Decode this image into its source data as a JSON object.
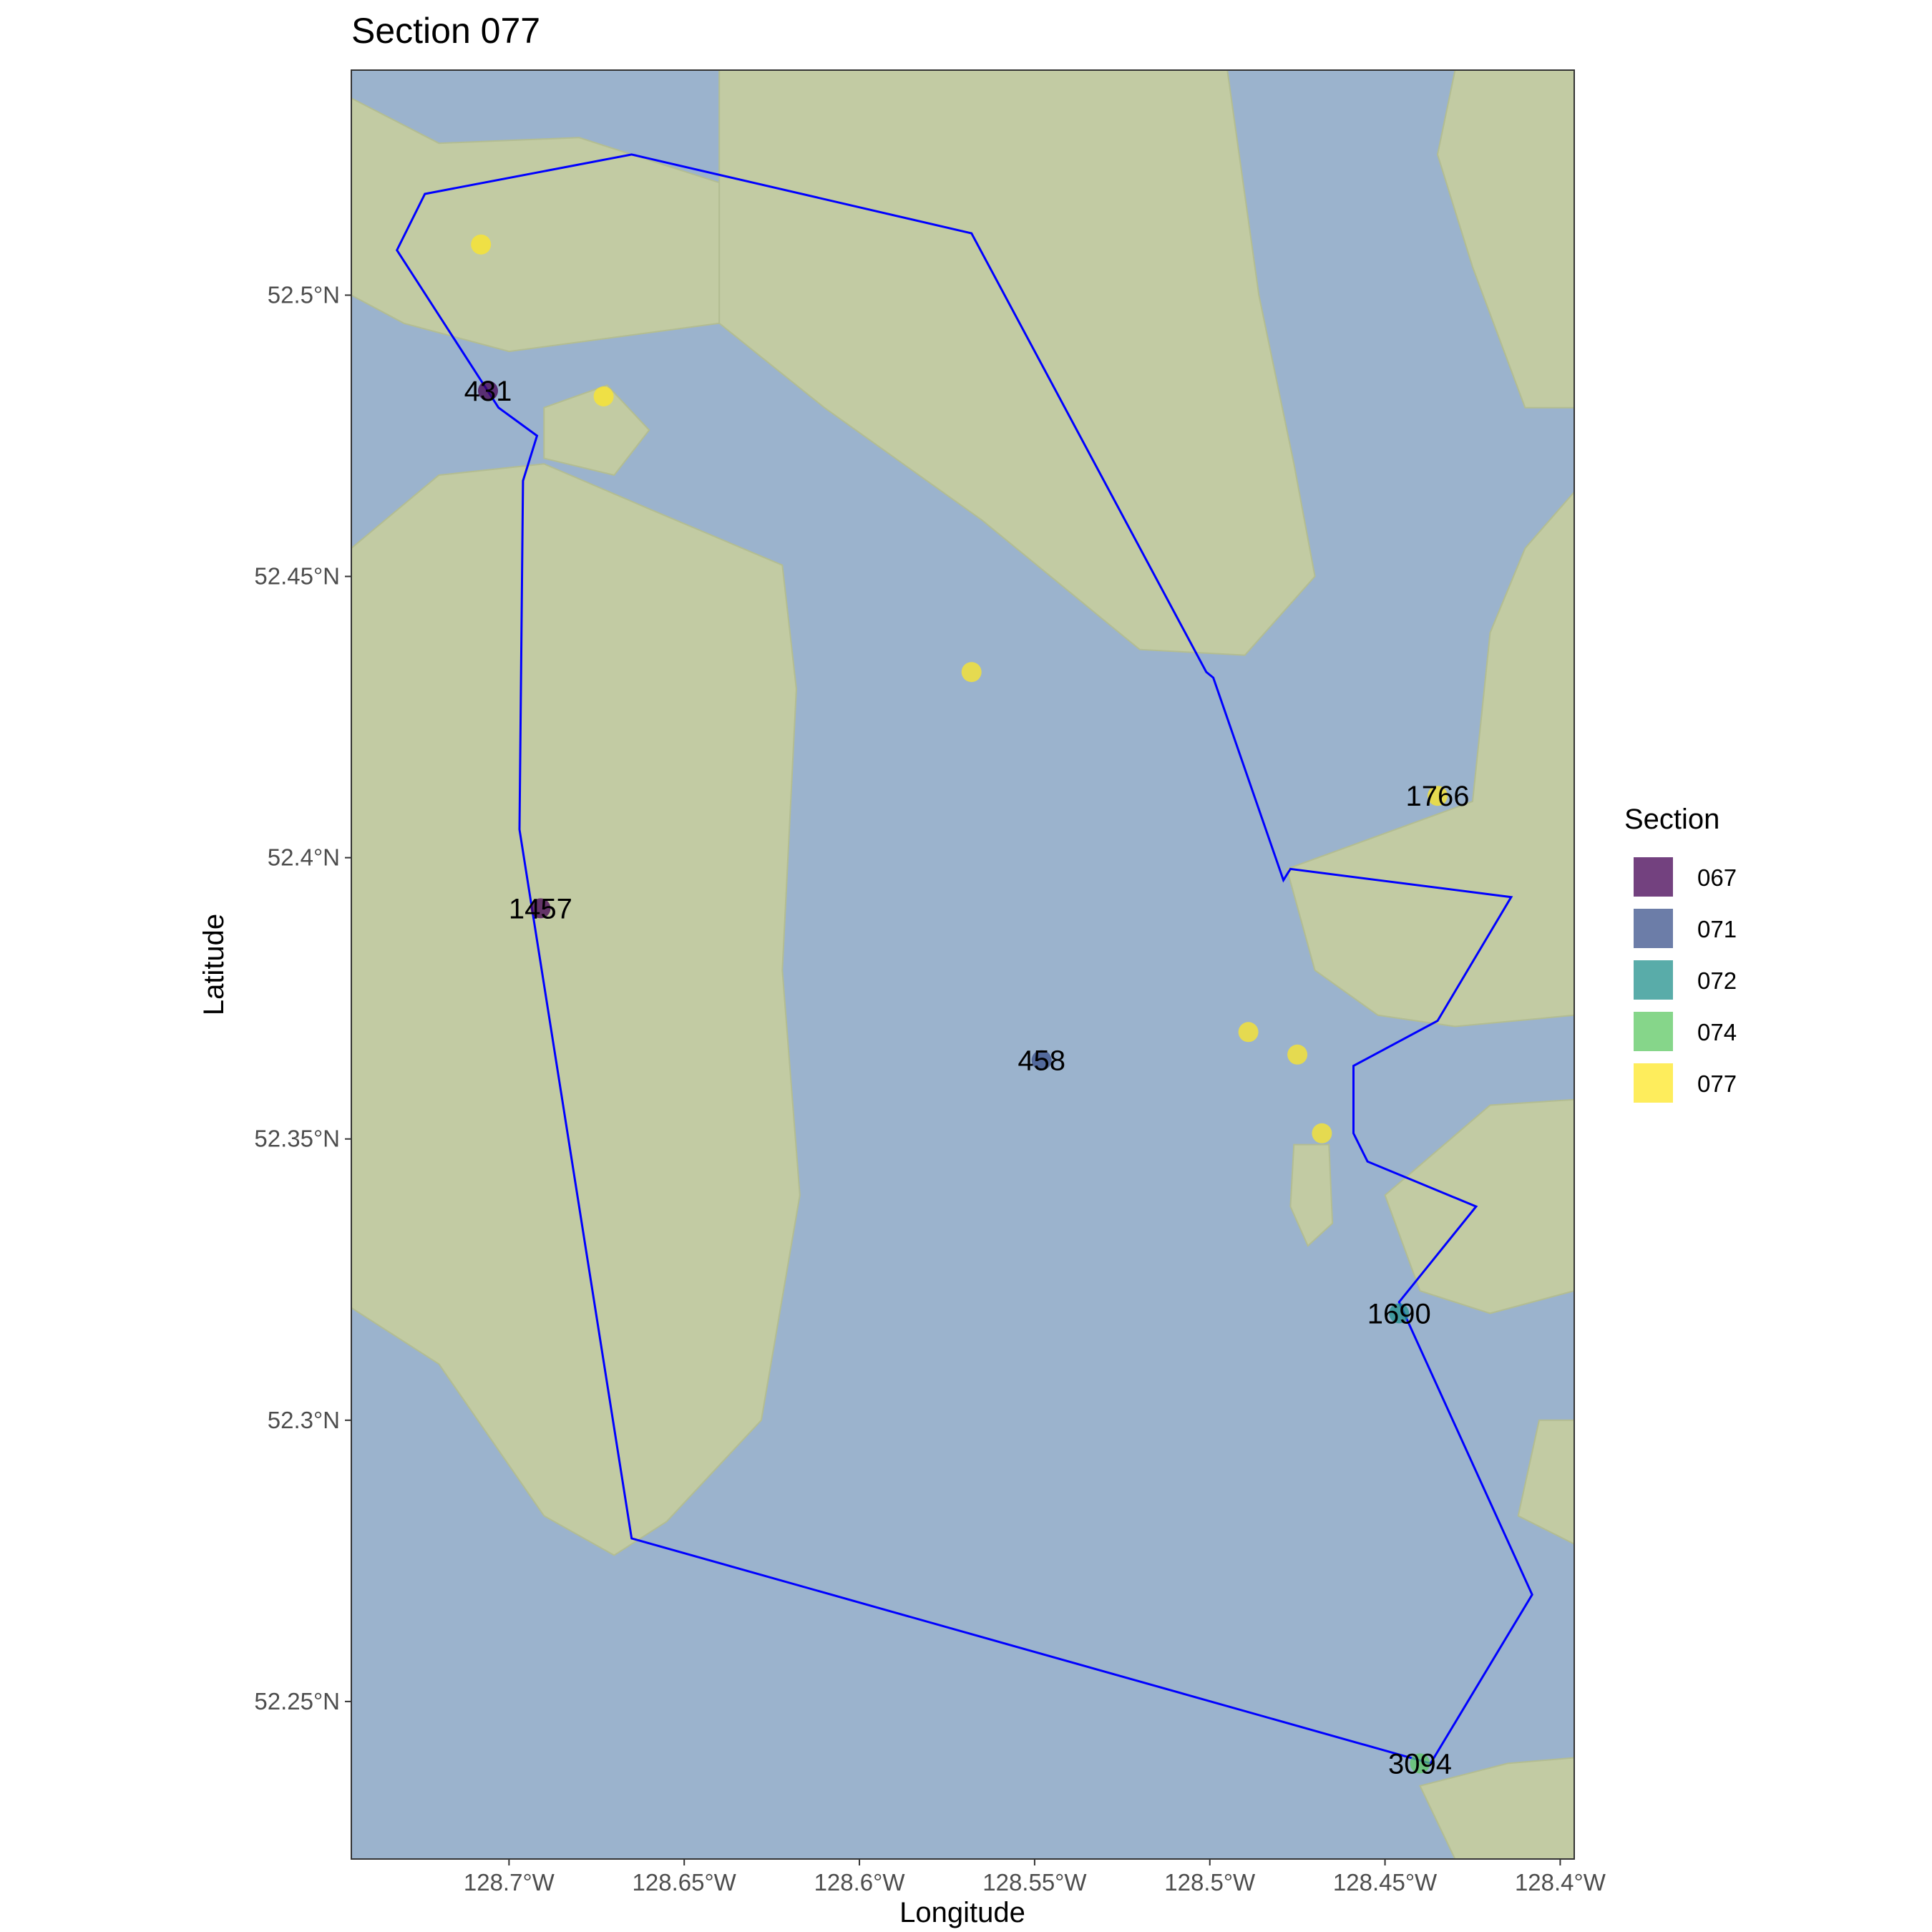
{
  "title": "Section 077",
  "x_axis": {
    "label": "Longitude",
    "ticks": [
      -128.7,
      -128.65,
      -128.6,
      -128.55,
      -128.5,
      -128.45,
      -128.4
    ],
    "tick_labels": [
      "128.7°W",
      "128.65°W",
      "128.6°W",
      "128.55°W",
      "128.5°W",
      "128.45°W",
      "128.4°W"
    ]
  },
  "y_axis": {
    "label": "Latitude",
    "ticks": [
      52.25,
      52.3,
      52.35,
      52.4,
      52.45,
      52.5
    ],
    "tick_labels": [
      "52.25°N",
      "52.3°N",
      "52.35°N",
      "52.4°N",
      "52.45°N",
      "52.5°N"
    ]
  },
  "legend": {
    "title": "Section",
    "entries": [
      {
        "label": "067",
        "color": "#440154"
      },
      {
        "label": "071",
        "color": "#3B528B"
      },
      {
        "label": "072",
        "color": "#21908C"
      },
      {
        "label": "074",
        "color": "#5DC863"
      },
      {
        "label": "077",
        "color": "#FDE725"
      }
    ]
  },
  "chart_data": {
    "type": "scatter",
    "title": "Section 077",
    "xlabel": "Longitude",
    "ylabel": "Latitude",
    "xlim": [
      -128.745,
      -128.396
    ],
    "ylim": [
      52.222,
      52.54
    ],
    "grid": false,
    "legend_position": "right",
    "colors": {
      "water": "#9bb3cd",
      "land": "#c2cba3",
      "boundary": "#0000ff"
    },
    "boundary": [
      [
        -128.665,
        52.525
      ],
      [
        -128.568,
        52.511
      ],
      [
        -128.501,
        52.433
      ],
      [
        -128.499,
        52.432
      ],
      [
        -128.479,
        52.396
      ],
      [
        -128.477,
        52.398
      ],
      [
        -128.414,
        52.393
      ],
      [
        -128.435,
        52.371
      ],
      [
        -128.459,
        52.363
      ],
      [
        -128.459,
        52.351
      ],
      [
        -128.455,
        52.346
      ],
      [
        -128.424,
        52.338
      ],
      [
        -128.446,
        52.321
      ],
      [
        -128.408,
        52.269
      ],
      [
        -128.437,
        52.239
      ],
      [
        -128.665,
        52.279
      ],
      [
        -128.697,
        52.405
      ],
      [
        -128.696,
        52.467
      ],
      [
        -128.692,
        52.475
      ],
      [
        -128.703,
        52.48
      ],
      [
        -128.732,
        52.508
      ],
      [
        -128.724,
        52.518
      ],
      [
        -128.665,
        52.525
      ]
    ],
    "points": [
      {
        "x": -128.706,
        "y": 52.483,
        "section": "067",
        "label": "431"
      },
      {
        "x": -128.691,
        "y": 52.391,
        "section": "067",
        "label": "1457"
      },
      {
        "x": -128.548,
        "y": 52.364,
        "section": "071",
        "label": "458"
      },
      {
        "x": -128.446,
        "y": 52.319,
        "section": "072",
        "label": "1690"
      },
      {
        "x": -128.44,
        "y": 52.239,
        "section": "074",
        "label": "3094"
      },
      {
        "x": -128.435,
        "y": 52.411,
        "section": "077",
        "label": "1766"
      },
      {
        "x": -128.708,
        "y": 52.509,
        "section": "077",
        "label": ""
      },
      {
        "x": -128.673,
        "y": 52.482,
        "section": "077",
        "label": ""
      },
      {
        "x": -128.568,
        "y": 52.433,
        "section": "077",
        "label": ""
      },
      {
        "x": -128.489,
        "y": 52.369,
        "section": "077",
        "label": ""
      },
      {
        "x": -128.475,
        "y": 52.365,
        "section": "077",
        "label": ""
      },
      {
        "x": -128.468,
        "y": 52.351,
        "section": "077",
        "label": ""
      }
    ],
    "land": [
      [
        [
          -128.745,
          52.535
        ],
        [
          -128.72,
          52.527
        ],
        [
          -128.68,
          52.528
        ],
        [
          -128.64,
          52.52
        ],
        [
          -128.64,
          52.495
        ],
        [
          -128.7,
          52.49
        ],
        [
          -128.73,
          52.495
        ],
        [
          -128.745,
          52.5
        ]
      ],
      [
        [
          -128.69,
          52.48
        ],
        [
          -128.672,
          52.484
        ],
        [
          -128.66,
          52.476
        ],
        [
          -128.67,
          52.468
        ],
        [
          -128.69,
          52.471
        ]
      ],
      [
        [
          -128.745,
          52.455
        ],
        [
          -128.72,
          52.468
        ],
        [
          -128.69,
          52.47
        ],
        [
          -128.66,
          52.462
        ],
        [
          -128.622,
          52.452
        ],
        [
          -128.618,
          52.43
        ],
        [
          -128.622,
          52.38
        ],
        [
          -128.617,
          52.34
        ],
        [
          -128.628,
          52.3
        ],
        [
          -128.655,
          52.282
        ],
        [
          -128.67,
          52.276
        ],
        [
          -128.69,
          52.283
        ],
        [
          -128.72,
          52.31
        ],
        [
          -128.745,
          52.32
        ]
      ],
      [
        [
          -128.64,
          52.54
        ],
        [
          -128.495,
          52.54
        ],
        [
          -128.486,
          52.5
        ],
        [
          -128.476,
          52.47
        ],
        [
          -128.47,
          52.45
        ],
        [
          -128.49,
          52.436
        ],
        [
          -128.52,
          52.437
        ],
        [
          -128.565,
          52.46
        ],
        [
          -128.61,
          52.48
        ],
        [
          -128.64,
          52.495
        ]
      ],
      [
        [
          -128.43,
          52.54
        ],
        [
          -128.396,
          52.54
        ],
        [
          -128.396,
          52.48
        ],
        [
          -128.41,
          52.48
        ],
        [
          -128.425,
          52.505
        ],
        [
          -128.435,
          52.525
        ]
      ],
      [
        [
          -128.396,
          52.465
        ],
        [
          -128.41,
          52.455
        ],
        [
          -128.42,
          52.44
        ],
        [
          -128.425,
          52.41
        ],
        [
          -128.478,
          52.398
        ],
        [
          -128.47,
          52.38
        ],
        [
          -128.452,
          52.372
        ],
        [
          -128.43,
          52.37
        ],
        [
          -128.396,
          52.372
        ]
      ],
      [
        [
          -128.396,
          52.357
        ],
        [
          -128.42,
          52.356
        ],
        [
          -128.45,
          52.34
        ],
        [
          -128.44,
          52.323
        ],
        [
          -128.42,
          52.319
        ],
        [
          -128.396,
          52.323
        ]
      ],
      [
        [
          -128.476,
          52.349
        ],
        [
          -128.466,
          52.349
        ],
        [
          -128.465,
          52.335
        ],
        [
          -128.472,
          52.331
        ],
        [
          -128.477,
          52.338
        ]
      ],
      [
        [
          -128.396,
          52.3
        ],
        [
          -128.406,
          52.3
        ],
        [
          -128.412,
          52.283
        ],
        [
          -128.396,
          52.278
        ]
      ],
      [
        [
          -128.396,
          52.24
        ],
        [
          -128.415,
          52.239
        ],
        [
          -128.44,
          52.235
        ],
        [
          -128.43,
          52.222
        ],
        [
          -128.396,
          52.222
        ]
      ]
    ]
  }
}
